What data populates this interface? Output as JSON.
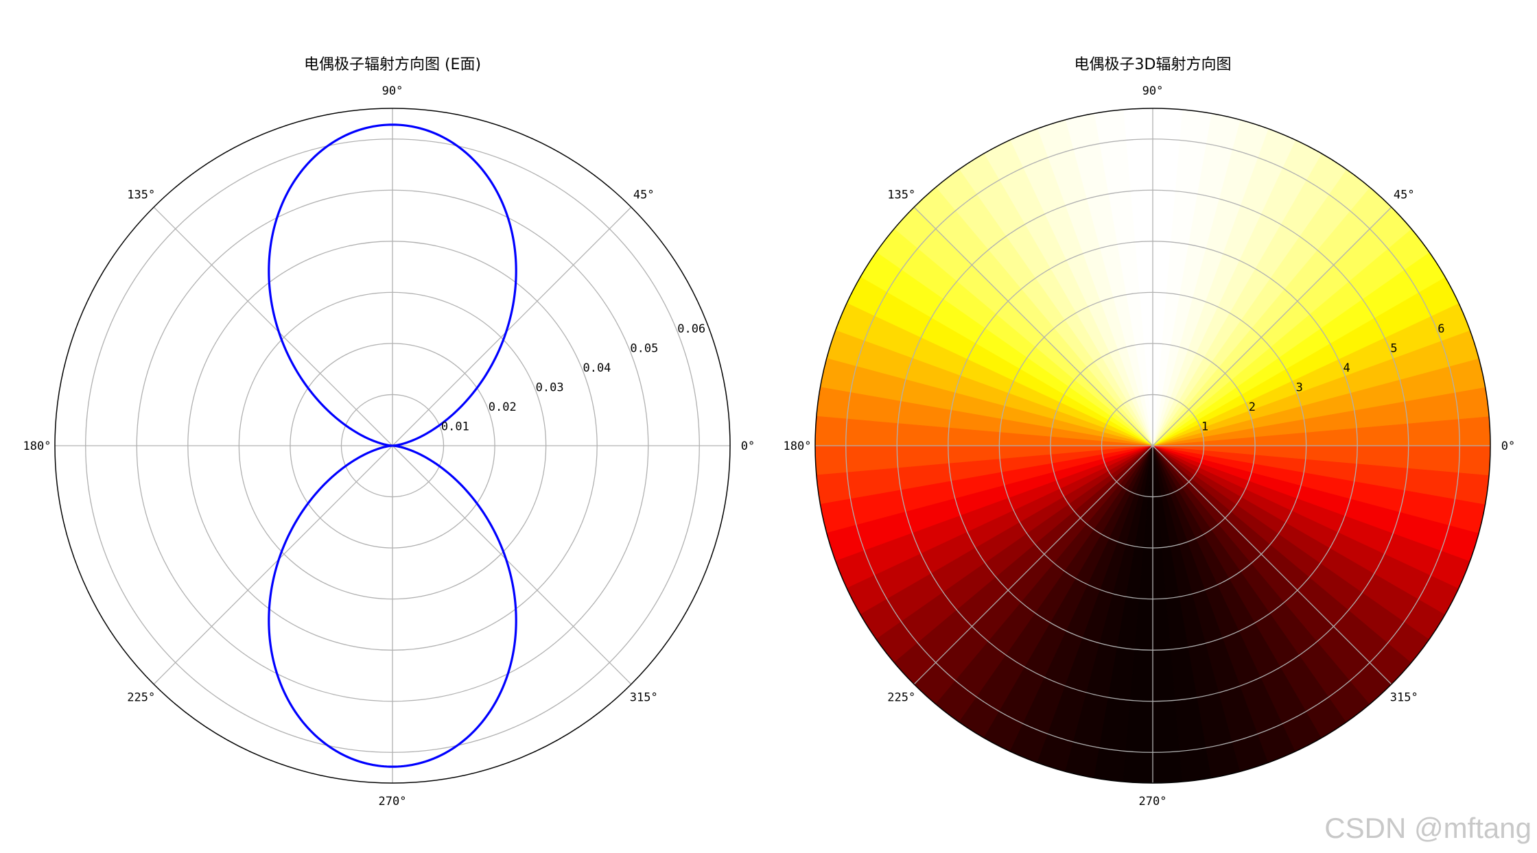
{
  "chart_data": [
    {
      "type": "line",
      "projection": "polar",
      "title": "电偶极子辐射方向图 (E面)",
      "angle_ticks": [
        "0°",
        "45°",
        "90°",
        "135°",
        "180°",
        "225°",
        "270°",
        "315°"
      ],
      "r_ticks": [
        "0.01",
        "0.02",
        "0.03",
        "0.04",
        "0.05",
        "0.06"
      ],
      "r_tick_values": [
        0.01,
        0.02,
        0.03,
        0.04,
        0.05,
        0.06
      ],
      "rlim": [
        0,
        0.066
      ],
      "grid": true,
      "series": [
        {
          "function": "r = 0.0628 * sin(theta)^2",
          "amplitude": 0.0628,
          "color": "#0000ff"
        }
      ]
    },
    {
      "type": "heatmap",
      "projection": "polar",
      "title": "电偶极子3D辐射方向图",
      "colormap": "hot",
      "angle_ticks": [
        "0°",
        "45°",
        "90°",
        "135°",
        "180°",
        "225°",
        "270°",
        "315°"
      ],
      "r_ticks": [
        "1",
        "2",
        "3",
        "4",
        "5",
        "6"
      ],
      "r_tick_values": [
        1,
        2,
        3,
        4,
        5,
        6
      ],
      "rlim": [
        0,
        6.6
      ],
      "grid": true,
      "value_function": "sin(phi)",
      "value_range": [
        -1,
        1
      ],
      "sectors": 72
    }
  ],
  "watermark": "CSDN @mftang"
}
